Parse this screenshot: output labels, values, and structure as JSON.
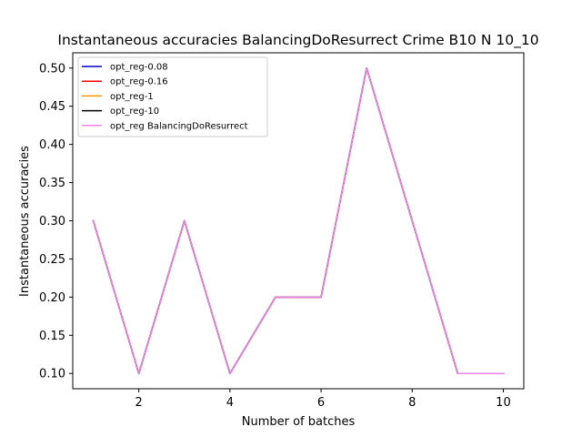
{
  "chart_data": {
    "type": "line",
    "title": "Instantaneous accuracies BalancingDoResurrect Crime B10 N 10_10",
    "xlabel": "Number of batches",
    "ylabel": "Instantaneous accuracies",
    "x": [
      1,
      2,
      3,
      4,
      5,
      6,
      7,
      8,
      9,
      10
    ],
    "xlim": [
      0.55,
      10.45
    ],
    "ylim": [
      0.08,
      0.52
    ],
    "xticks": [
      2,
      4,
      6,
      8,
      10
    ],
    "xtick_labels": [
      "2",
      "4",
      "6",
      "8",
      "10"
    ],
    "yticks": [
      0.1,
      0.15,
      0.2,
      0.25,
      0.3,
      0.35,
      0.4,
      0.45,
      0.5
    ],
    "ytick_labels": [
      "0.10",
      "0.15",
      "0.20",
      "0.25",
      "0.30",
      "0.35",
      "0.40",
      "0.45",
      "0.50"
    ],
    "grid": false,
    "legend_position": "top-left",
    "series": [
      {
        "name": "opt_reg-0.08",
        "color": "#0000cc",
        "values": [
          0.3,
          0.1,
          0.3,
          0.1,
          0.2,
          0.2,
          0.5,
          0.3,
          0.1,
          0.1
        ]
      },
      {
        "name": "opt_reg-0.16",
        "color": "#ff0000",
        "values": [
          0.3,
          0.1,
          0.3,
          0.1,
          0.2,
          0.2,
          0.5,
          0.3,
          0.1,
          0.1
        ]
      },
      {
        "name": "opt_reg-1",
        "color": "#ff9900",
        "values": [
          0.3,
          0.1,
          0.3,
          0.1,
          0.2,
          0.2,
          0.5,
          0.3,
          0.1,
          0.1
        ]
      },
      {
        "name": "opt_reg-10",
        "color": "#000000",
        "values": [
          0.3,
          0.1,
          0.3,
          0.1,
          0.2,
          0.2,
          0.5,
          0.3,
          0.1,
          0.1
        ]
      },
      {
        "name": "opt_reg BalancingDoResurrect",
        "color": "#ee82ee",
        "values": [
          0.3,
          0.1,
          0.3,
          0.1,
          0.2,
          0.2,
          0.5,
          0.3,
          0.1,
          0.1
        ]
      }
    ]
  }
}
